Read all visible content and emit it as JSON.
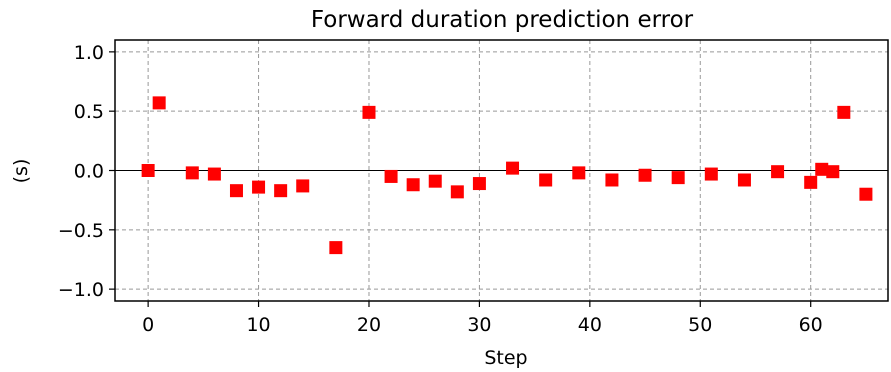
{
  "chart_data": {
    "type": "scatter",
    "title": "Forward duration prediction error",
    "xlabel": "Step",
    "ylabel": "(s)",
    "xlim": [
      -3,
      67
    ],
    "ylim": [
      -1.1,
      1.1
    ],
    "xticks": [
      0,
      10,
      20,
      30,
      40,
      50,
      60
    ],
    "yticks": [
      1.0,
      0.5,
      0.0,
      -0.5,
      -1.0
    ],
    "ytick_labels": [
      "1.0",
      "0.5",
      "0.0",
      "−0.5",
      "−1.0"
    ],
    "grid": true,
    "zero_line": true,
    "marker": "square",
    "color": "#ff0000",
    "series": [
      {
        "x": [
          0,
          1,
          4,
          6,
          8,
          10,
          12,
          14,
          17,
          20,
          22,
          24,
          26,
          28,
          30,
          33,
          36,
          39,
          42,
          45,
          48,
          51,
          54,
          57,
          60,
          61,
          62,
          63,
          65
        ],
        "y": [
          0.0,
          0.57,
          -0.02,
          -0.03,
          -0.17,
          -0.14,
          -0.17,
          -0.13,
          -0.65,
          0.49,
          -0.05,
          -0.12,
          -0.09,
          -0.18,
          -0.11,
          0.02,
          -0.08,
          -0.02,
          -0.08,
          -0.04,
          -0.06,
          -0.03,
          -0.08,
          -0.01,
          -0.1,
          0.01,
          -0.01,
          0.49,
          -0.2
        ]
      }
    ]
  }
}
